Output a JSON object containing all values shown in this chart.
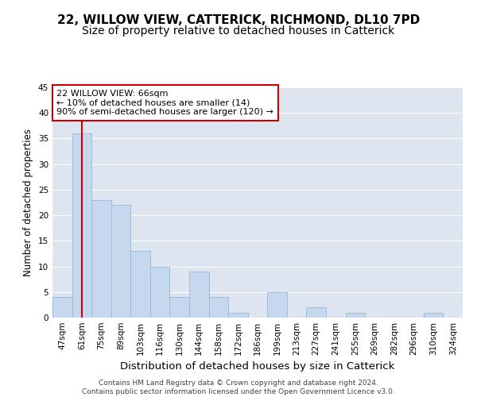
{
  "title1": "22, WILLOW VIEW, CATTERICK, RICHMOND, DL10 7PD",
  "title2": "Size of property relative to detached houses in Catterick",
  "xlabel": "Distribution of detached houses by size in Catterick",
  "ylabel": "Number of detached properties",
  "categories": [
    "47sqm",
    "61sqm",
    "75sqm",
    "89sqm",
    "103sqm",
    "116sqm",
    "130sqm",
    "144sqm",
    "158sqm",
    "172sqm",
    "186sqm",
    "199sqm",
    "213sqm",
    "227sqm",
    "241sqm",
    "255sqm",
    "269sqm",
    "282sqm",
    "296sqm",
    "310sqm",
    "324sqm"
  ],
  "values": [
    4,
    36,
    23,
    22,
    13,
    10,
    4,
    9,
    4,
    1,
    0,
    5,
    0,
    2,
    0,
    1,
    0,
    0,
    0,
    1,
    0
  ],
  "bar_color": "#c5d8ee",
  "bar_edge_color": "#a0bcd8",
  "vline_x": 1,
  "vline_color": "#cc0000",
  "annotation_text": "22 WILLOW VIEW: 66sqm\n← 10% of detached houses are smaller (14)\n90% of semi-detached houses are larger (120) →",
  "annotation_box_color": "#ffffff",
  "annotation_box_edge_color": "#cc0000",
  "ylim": [
    0,
    45
  ],
  "yticks": [
    0,
    5,
    10,
    15,
    20,
    25,
    30,
    35,
    40,
    45
  ],
  "bg_color": "#dde6f0",
  "footer_text": "Contains HM Land Registry data © Crown copyright and database right 2024.\nContains public sector information licensed under the Open Government Licence v3.0.",
  "title1_fontsize": 11,
  "title2_fontsize": 10,
  "xlabel_fontsize": 9.5,
  "ylabel_fontsize": 8.5,
  "tick_fontsize": 7.5,
  "footer_fontsize": 6.5,
  "annot_fontsize": 8
}
